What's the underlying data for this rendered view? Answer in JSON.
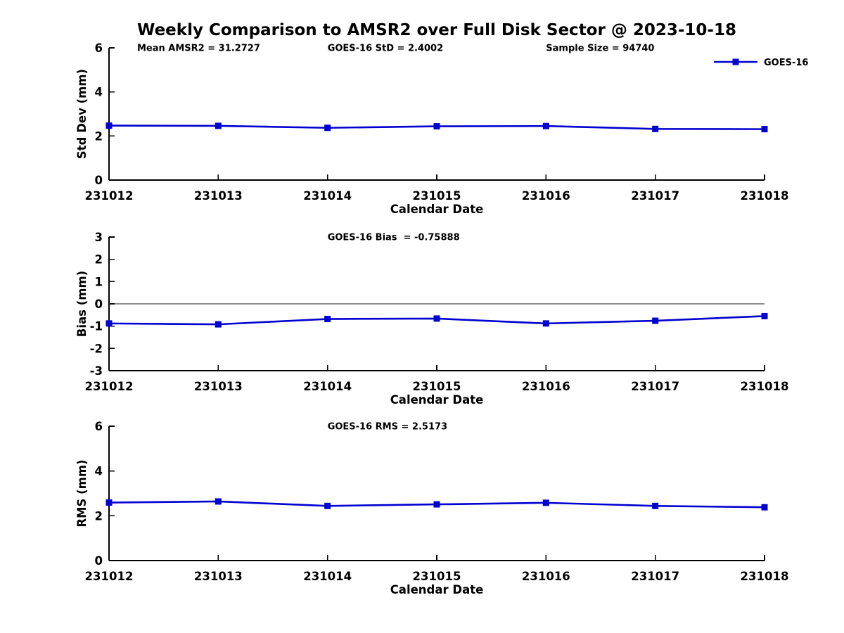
{
  "title": "Weekly Comparison to AMSR2 over Full Disk Sector @ 2023-10-18",
  "colors": {
    "series_line": "#0000D0",
    "axis": "#000000",
    "zero_line": "#1a1a1a"
  },
  "legend": {
    "label": "GOES-16"
  },
  "chart_data": [
    {
      "type": "line",
      "id": "stddev",
      "series_name": "GOES-16",
      "ylabel": "Std Dev (mm)",
      "xlabel": "Calendar Date",
      "categories": [
        "231012",
        "231013",
        "231014",
        "231015",
        "231016",
        "231017",
        "231018"
      ],
      "values": [
        2.47,
        2.46,
        2.37,
        2.44,
        2.45,
        2.32,
        2.31
      ],
      "ylim": [
        0,
        6
      ],
      "yticks": [
        0,
        2,
        4,
        6
      ],
      "grid": false,
      "zero_line": false,
      "show_legend": true,
      "legend_position": "top-right",
      "annotations": [
        "Mean AMSR2 = 31.2727",
        "GOES-16 StD = 2.4002",
        "Sample Size = 94740"
      ]
    },
    {
      "type": "line",
      "id": "bias",
      "series_name": "GOES-16",
      "ylabel": "Bias (mm)",
      "xlabel": "Calendar Date",
      "categories": [
        "231012",
        "231013",
        "231014",
        "231015",
        "231016",
        "231017",
        "231018"
      ],
      "values": [
        -0.88,
        -0.92,
        -0.68,
        -0.66,
        -0.88,
        -0.76,
        -0.55
      ],
      "ylim": [
        -3,
        3
      ],
      "yticks": [
        -3,
        -2,
        -1,
        0,
        1,
        2,
        3
      ],
      "grid": false,
      "zero_line": true,
      "show_legend": false,
      "annotations": [
        "GOES-16 Bias  = -0.75888"
      ]
    },
    {
      "type": "line",
      "id": "rms",
      "series_name": "GOES-16",
      "ylabel": "RMS (mm)",
      "xlabel": "Calendar Date",
      "categories": [
        "231012",
        "231013",
        "231014",
        "231015",
        "231016",
        "231017",
        "231018"
      ],
      "values": [
        2.59,
        2.64,
        2.44,
        2.51,
        2.58,
        2.44,
        2.38
      ],
      "ylim": [
        0,
        6
      ],
      "yticks": [
        0,
        2,
        4,
        6
      ],
      "grid": false,
      "zero_line": false,
      "show_legend": false,
      "annotations": [
        "GOES-16 RMS = 2.5173"
      ]
    }
  ]
}
